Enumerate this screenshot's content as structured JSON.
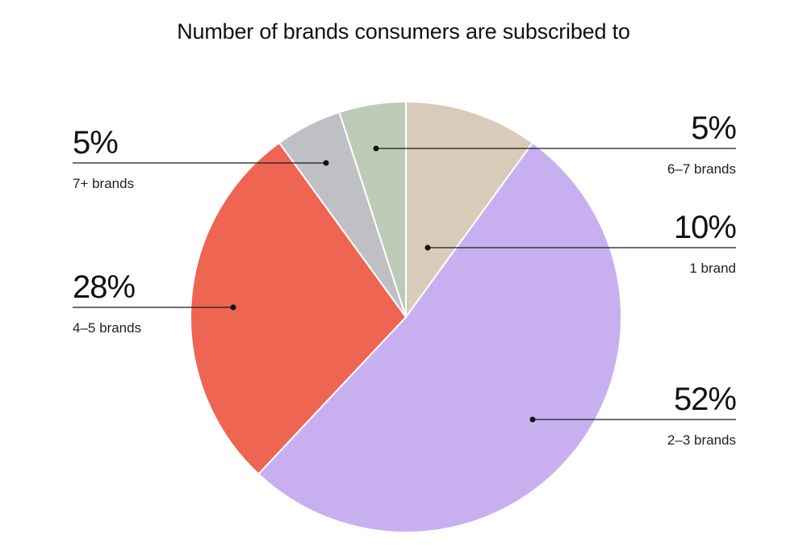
{
  "chart_data": {
    "type": "pie",
    "title": "Number of brands consumers are subscribed to",
    "slices": [
      {
        "category": "1 brand",
        "value": 10,
        "label": "10%",
        "color": "#d8cbb9"
      },
      {
        "category": "2–3 brands",
        "value": 52,
        "label": "52%",
        "color": "#c8b0f0"
      },
      {
        "category": "4–5 brands",
        "value": 28,
        "label": "28%",
        "color": "#ee6552"
      },
      {
        "category": "7+ brands",
        "value": 5,
        "label": "5%",
        "color": "#bfbfc6"
      },
      {
        "category": "6–7 brands",
        "value": 5,
        "label": "5%",
        "color": "#bccab6"
      }
    ],
    "start_angle": "12 o'clock",
    "direction": "clockwise",
    "legend": "none",
    "data_labels": "outside with leader lines"
  }
}
